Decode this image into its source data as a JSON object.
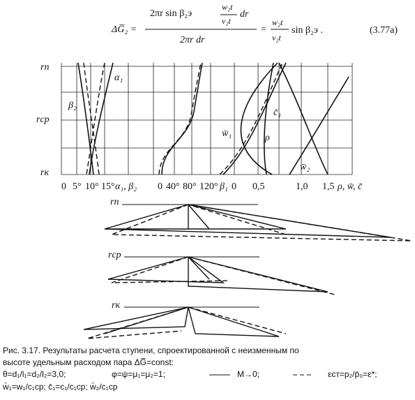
{
  "equation": {
    "lhs": "ΔG̅₂ =",
    "numerator": "2πr sin β₂э",
    "inner_num": "w₂t",
    "inner_den": "v₂t",
    "numerator_tail": "dr",
    "denominator": "2πr dr",
    "equals": "=",
    "right_num": "w₂t",
    "right_den": "v₂t",
    "right_tail": "sin β₂э .",
    "number": "(3.77a)"
  },
  "figure": {
    "y_labels": [
      "rп",
      "rср",
      "rк"
    ],
    "x_labels": [
      "0",
      "5°",
      "10°",
      "15°",
      "α₁, β₂",
      "0",
      "40°",
      "80°",
      "120°",
      "β₁",
      "0",
      "0,5",
      "1,0",
      "1,5",
      "ρ, w̄, c̄"
    ],
    "curve_labels": [
      "α₁",
      "β₂",
      "c̄₁",
      "w̄₁",
      "ρ",
      "w̄₂"
    ],
    "triangle_labels": [
      "rп",
      "rср",
      "rк"
    ]
  },
  "caption": {
    "line1": "Рис. 3.17. Результаты расчета ступени, спроектированной с неизменным по",
    "line2": "высоте удельным расходом пара ΔG̅=const:",
    "line3": [
      "θ=d₁/l₁=d₂/l₂=3,0;",
      "φ=ψ=μ₁=μ₂=1;",
      "M→0;",
      "εст=p₂/p̄₀=ε*;"
    ],
    "line4": "w̄₁=w₁/c₁ср;  c̄₁=c₁/c₁ср;  w̄₂/c₁ср"
  }
}
